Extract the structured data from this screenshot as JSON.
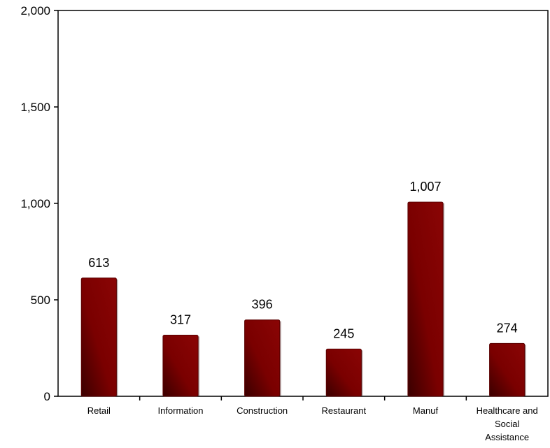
{
  "chart_data": {
    "type": "bar",
    "categories": [
      [
        "Retail"
      ],
      [
        "Information"
      ],
      [
        "Construction"
      ],
      [
        "Restaurant"
      ],
      [
        "Manuf"
      ],
      [
        "Healthcare and",
        "Social",
        "Assistance"
      ]
    ],
    "values": [
      613,
      317,
      396,
      245,
      1007,
      274
    ],
    "value_labels": [
      "613",
      "317",
      "396",
      "245",
      "1,007",
      "274"
    ],
    "ylim": [
      0,
      2000
    ],
    "yticks": [
      0,
      500,
      1000,
      1500,
      2000
    ],
    "ytick_labels": [
      "0",
      "500",
      "1,000",
      "1,500",
      "2,000"
    ],
    "grid": false,
    "bar_color": "#7a0000",
    "bar_color_dark": "#3a0000"
  }
}
